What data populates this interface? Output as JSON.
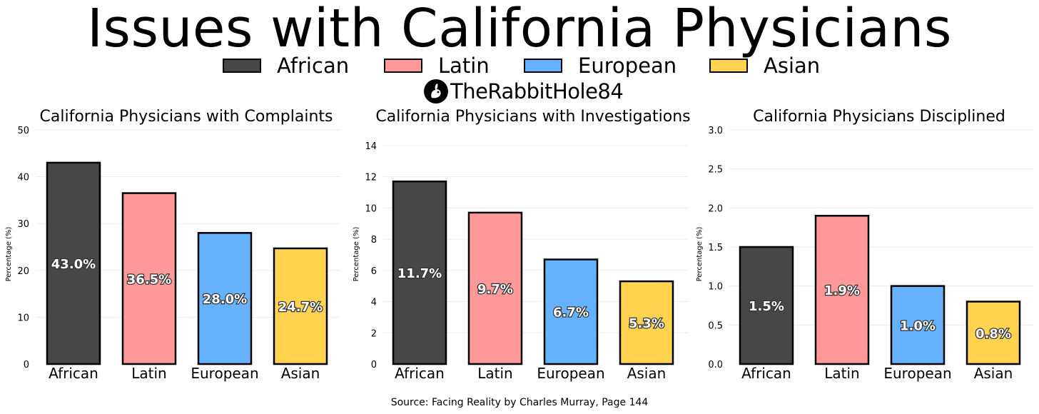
{
  "title": "Issues with California Physicians",
  "legend": [
    {
      "label": "African",
      "color": "#474747"
    },
    {
      "label": "Latin",
      "color": "#ff9999"
    },
    {
      "label": "European",
      "color": "#66b2ff"
    },
    {
      "label": "Asian",
      "color": "#ffd34f"
    }
  ],
  "watermark": "TheRabbitHole84",
  "footer": "Source: Facing Reality by Charles Murray, Page 144",
  "chart_data": [
    {
      "type": "bar",
      "title": "California Physicians with Complaints",
      "ylabel": "Percentage (%)",
      "categories": [
        "African",
        "Latin",
        "European",
        "Asian"
      ],
      "values": [
        43.0,
        36.5,
        28.0,
        24.7
      ],
      "data_labels": [
        "43.0%",
        "36.5%",
        "28.0%",
        "24.7%"
      ],
      "ylim": [
        0,
        50
      ],
      "yticks": [
        0,
        10,
        20,
        30,
        40,
        50
      ],
      "ytick_labels": [
        "0",
        "10",
        "20",
        "30",
        "40",
        "50"
      ],
      "grid": true
    },
    {
      "type": "bar",
      "title": "California Physicians with Investigations",
      "ylabel": "Percentage (%)",
      "categories": [
        "African",
        "Latin",
        "European",
        "Asian"
      ],
      "values": [
        11.7,
        9.7,
        6.7,
        5.3
      ],
      "data_labels": [
        "11.7%",
        "9.7%",
        "6.7%",
        "5.3%"
      ],
      "ylim": [
        0,
        15
      ],
      "yticks": [
        0,
        2,
        4,
        6,
        8,
        10,
        12,
        14
      ],
      "ytick_labels": [
        "0",
        "2",
        "4",
        "6",
        "8",
        "10",
        "12",
        "14"
      ],
      "grid": true
    },
    {
      "type": "bar",
      "title": "California Physicians Disciplined",
      "ylabel": "Percentage (%)",
      "categories": [
        "African",
        "Latin",
        "European",
        "Asian"
      ],
      "values": [
        1.5,
        1.9,
        1.0,
        0.8
      ],
      "data_labels": [
        "1.5%",
        "1.9%",
        "1.0%",
        "0.8%"
      ],
      "ylim": [
        0,
        3.0
      ],
      "yticks": [
        0,
        0.5,
        1.0,
        1.5,
        2.0,
        2.5,
        3.0
      ],
      "ytick_labels": [
        "0.0",
        "0.5",
        "1.0",
        "1.5",
        "2.0",
        "2.5",
        "3.0"
      ],
      "grid": true
    }
  ]
}
